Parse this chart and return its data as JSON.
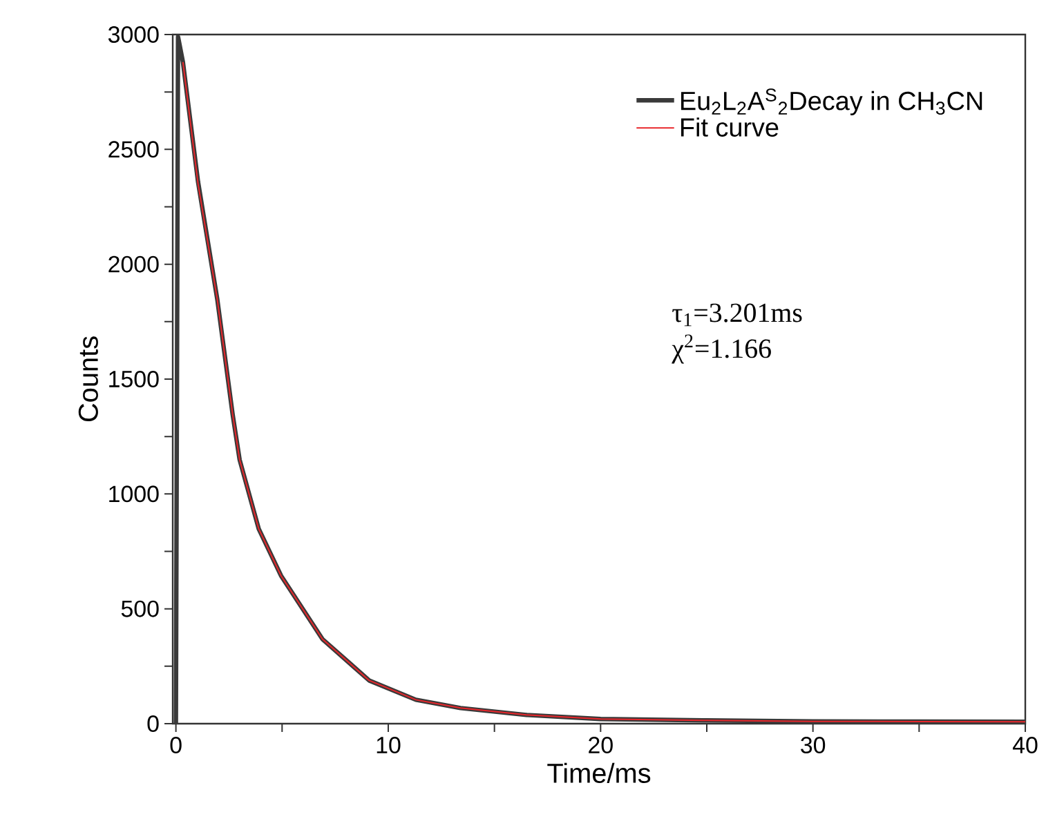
{
  "chart_data": {
    "type": "line",
    "xlabel": "Time/ms",
    "ylabel": "Counts",
    "xlim": [
      -0.15,
      40
    ],
    "ylim": [
      0,
      3000
    ],
    "xticks": [
      0,
      {
        "value": 5,
        "label": null
      },
      10,
      {
        "value": 15,
        "label": null
      },
      20,
      {
        "value": 25,
        "label": null
      },
      30,
      {
        "value": 35,
        "label": null
      },
      40
    ],
    "yticks": [
      0,
      {
        "value": 250,
        "label": null
      },
      500,
      {
        "value": 750,
        "label": null
      },
      1000,
      {
        "value": 1250,
        "label": null
      },
      1500,
      {
        "value": 1750,
        "label": null
      },
      2000,
      {
        "value": 2250,
        "label": null
      },
      2500,
      {
        "value": 2750,
        "label": null
      },
      3000
    ],
    "legend": "top right",
    "series": [
      {
        "name": "Eu$_{2}$L$_{2}$A$^{S}$$_{2}$Decay in CH$_{3}$CN",
        "color": "#3a3a3a",
        "x": [
          0,
          0.1,
          0.33,
          1.04,
          1.95,
          2.67,
          3.0,
          3.9,
          4.95,
          6.9,
          9.1,
          11.3,
          13.4,
          16.5,
          20,
          25,
          30,
          35,
          40
        ],
        "values": [
          0,
          2990,
          2880,
          2360,
          1846,
          1347,
          1149,
          848,
          644,
          368,
          188,
          104,
          68,
          38,
          20,
          14,
          10,
          9,
          8
        ]
      },
      {
        "name": "Fit curve",
        "color": "#e8262b",
        "x": [
          0.33,
          1.04,
          1.95,
          2.67,
          3.0,
          3.9,
          4.95,
          6.9,
          9.1,
          11.3,
          13.4,
          16.5,
          20,
          25,
          30,
          35,
          40
        ],
        "values": [
          2880,
          2351,
          1846,
          1347,
          1149,
          848,
          644,
          368,
          188,
          104,
          68,
          38,
          20,
          14,
          10,
          9,
          8
        ]
      }
    ],
    "annotations": [
      "τ$_{1}$=3.201ms",
      "χ$^{2}$=1.166"
    ]
  }
}
